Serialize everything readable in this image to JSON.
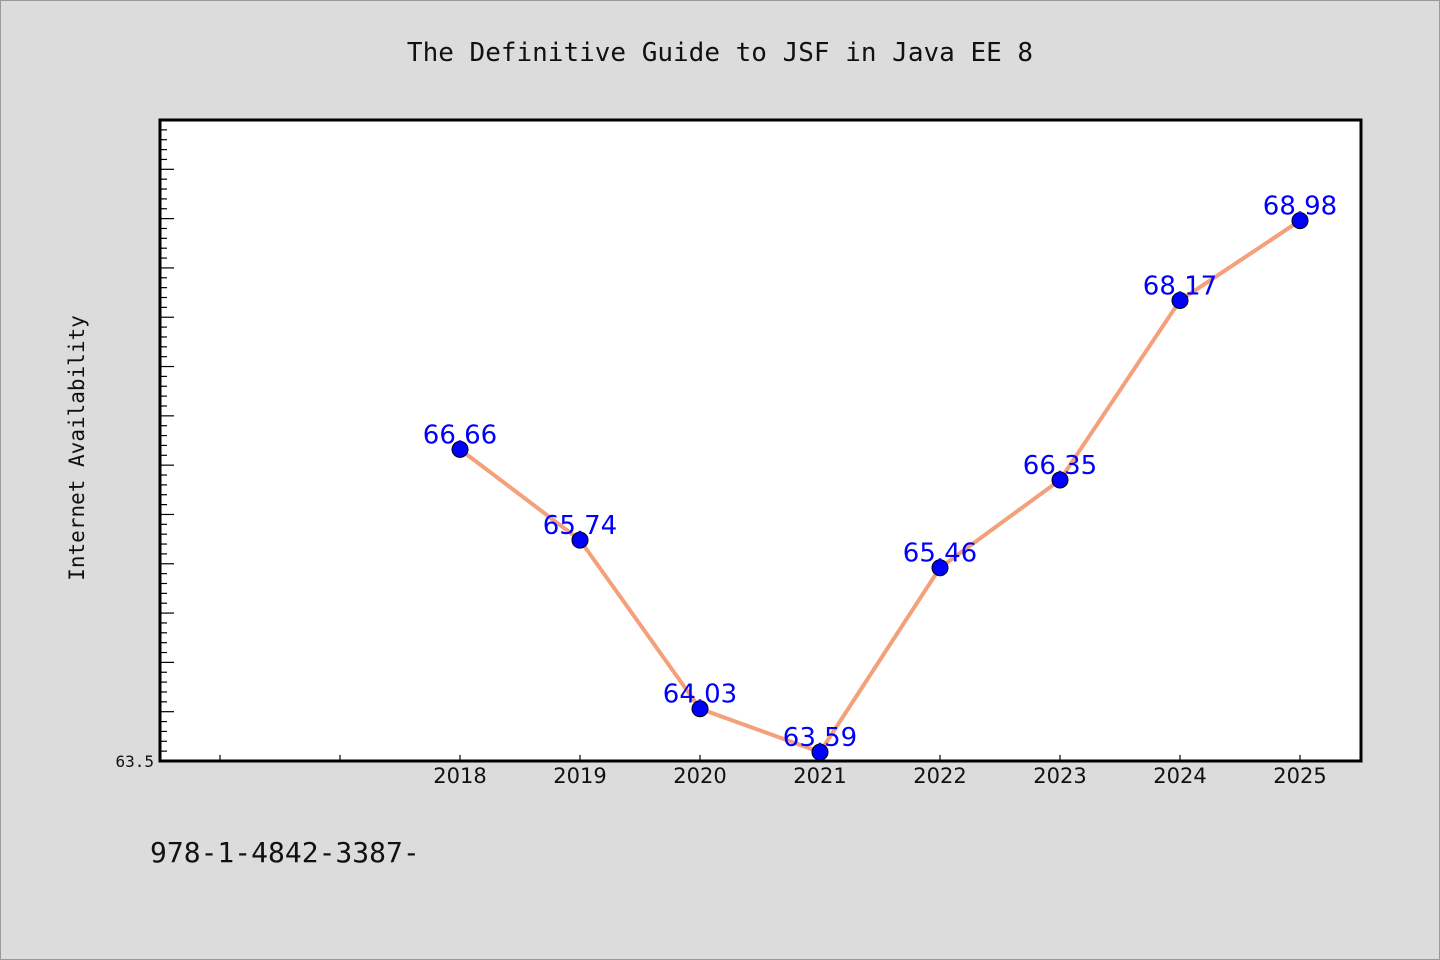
{
  "chart_data": {
    "type": "line",
    "title": "The Definitive Guide to JSF in Java EE 8",
    "xlabel": "",
    "ylabel": "Internet Availability",
    "categories": [
      "2018",
      "2019",
      "2020",
      "2021",
      "2022",
      "2023",
      "2024",
      "2025"
    ],
    "values": [
      66.66,
      65.74,
      64.03,
      63.59,
      65.46,
      66.35,
      68.17,
      68.98
    ],
    "data_labels": [
      "66.66",
      "65.74",
      "64.03",
      "63.59",
      "65.46",
      "66.35",
      "68.17",
      "68.98"
    ],
    "ylim": [
      63.5,
      70.0
    ],
    "yticks_labeled": [
      "63.5"
    ],
    "grid": false,
    "line_color": "#f4a07a",
    "marker_color": "#0000ff",
    "label_color": "#0000ff"
  },
  "footer": {
    "text": "978-1-4842-3387-"
  }
}
